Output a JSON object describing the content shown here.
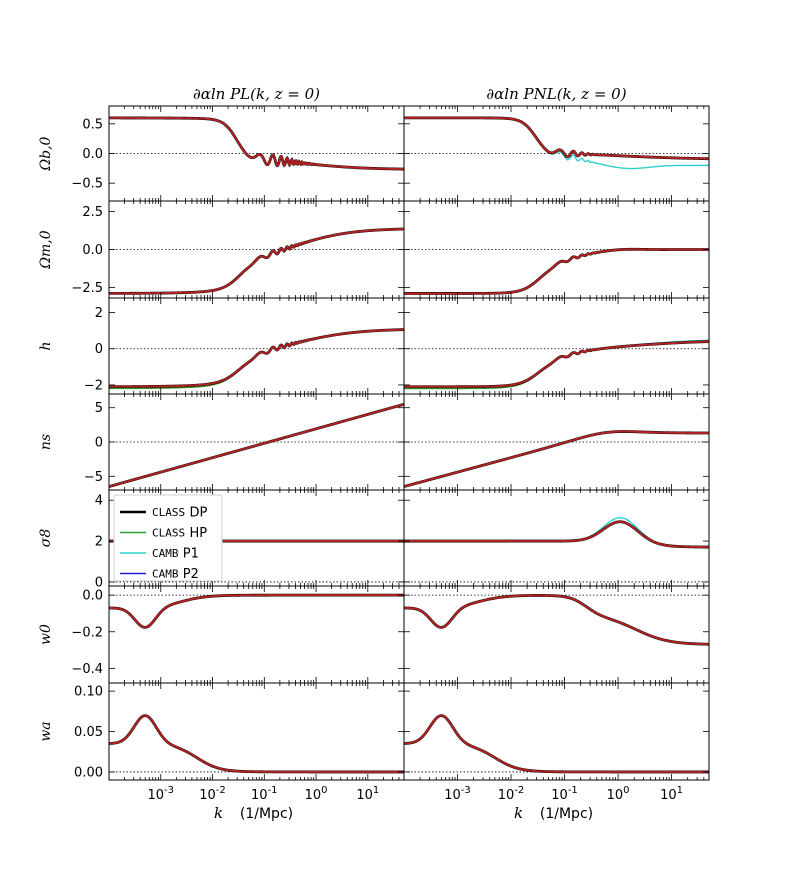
{
  "chart_data": {
    "type": "line",
    "columns": [
      {
        "title": "∂αln PL(k, z = 0)",
        "kind": "linear"
      },
      {
        "title": "∂αln PNL(k, z = 0)",
        "kind": "nonlinear"
      }
    ],
    "x": {
      "label": "k",
      "units": "(1/Mpc)",
      "scale": "log",
      "xlim": [
        0.0001,
        50
      ],
      "major_ticks": [
        0.001,
        0.01,
        0.1,
        1,
        10
      ],
      "tick_labels": [
        {
          "base": "10",
          "exp": "-3"
        },
        {
          "base": "10",
          "exp": "-2"
        },
        {
          "base": "10",
          "exp": "-1"
        },
        {
          "base": "10",
          "exp": "0"
        },
        {
          "base": "10",
          "exp": "1"
        }
      ]
    },
    "rows": [
      {
        "param": "Ωb,0",
        "ylim": [
          -0.8,
          0.8
        ],
        "yticks": [
          -0.5,
          0.0,
          0.5
        ],
        "ytick_labels": [
          "−0.5",
          "0.0",
          "0.5"
        ]
      },
      {
        "param": "Ωm,0",
        "ylim": [
          -3.2,
          3.2
        ],
        "yticks": [
          -2.5,
          0.0,
          2.5
        ],
        "ytick_labels": [
          "−2.5",
          "0.0",
          "2.5"
        ]
      },
      {
        "param": "h",
        "ylim": [
          -2.5,
          2.8
        ],
        "yticks": [
          -2,
          0,
          2
        ],
        "ytick_labels": [
          "−2",
          "0",
          "2"
        ]
      },
      {
        "param": "ns",
        "ylim": [
          -7,
          7
        ],
        "yticks": [
          -5,
          0,
          5
        ],
        "ytick_labels": [
          "−5",
          "0",
          "5"
        ]
      },
      {
        "param": "σ8",
        "ylim": [
          -0.2,
          4.5
        ],
        "yticks": [
          0,
          2,
          4
        ],
        "ytick_labels": [
          "0",
          "2",
          "4"
        ]
      },
      {
        "param": "w0",
        "ylim": [
          -0.48,
          0.05
        ],
        "yticks": [
          -0.4,
          -0.2,
          0.0
        ],
        "ytick_labels": [
          "−0.4",
          "−0.2",
          "0.0"
        ]
      },
      {
        "param": "wa",
        "ylim": [
          -0.01,
          0.11
        ],
        "yticks": [
          0.0,
          0.05,
          0.1
        ],
        "ytick_labels": [
          "0.00",
          "0.05",
          "0.10"
        ]
      }
    ],
    "legend": {
      "location": "upper-left of σ8 row, left column",
      "entries": [
        {
          "name_sc": "CLASS",
          "name": "DP",
          "color": "#000000",
          "width": 2.6
        },
        {
          "name_sc": "CLASS",
          "name": "HP",
          "color": "#2ca02c",
          "width": 1.4
        },
        {
          "name_sc": "CAMB",
          "name": "P1",
          "color": "#2ecfcf",
          "width": 1.4
        },
        {
          "name_sc": "CAMB",
          "name": "P2",
          "color": "#1f1fd6",
          "width": 1.4
        }
      ]
    },
    "series": {
      "DP": {
        "color": "#000000"
      },
      "HP": {
        "color": "#2ca02c"
      },
      "P1": {
        "color": "#2ecfcf"
      },
      "P2": {
        "color": "#1f1fd6"
      },
      "combined": {
        "color": "#b22222"
      }
    },
    "curves_description": {
      "Ωb,0": {
        "low_k": 0.6,
        "high_k_linear": -0.27,
        "high_k_nonlinear": -0.1,
        "camb_p1_high_k_nonlinear": -0.2
      },
      "Ωm,0": {
        "low_k": -2.9,
        "high_k_linear": 1.4,
        "high_k_nonlinear": 0.0
      },
      "h": {
        "low_k": -2.1,
        "high_k_linear": 1.1,
        "high_k_nonlinear": 0.4
      },
      "ns": {
        "low_k": -6.5,
        "high_k_linear": 5.5,
        "high_k_nonlinear": 1.3
      },
      "σ8": {
        "low_k": 2.0,
        "peak_nonlinear": 3.0,
        "peak_nonlinear_p1": 3.2,
        "high_k_nonlinear": 1.7
      },
      "w0": {
        "low_k": -0.07,
        "dip_k": 0.0005,
        "dip_value": -0.18,
        "high_k_nonlinear": -0.27
      },
      "wa": {
        "low_k": 0.035,
        "peak_k": 0.0005,
        "peak_value": 0.067,
        "high_k": 0.0
      }
    }
  }
}
